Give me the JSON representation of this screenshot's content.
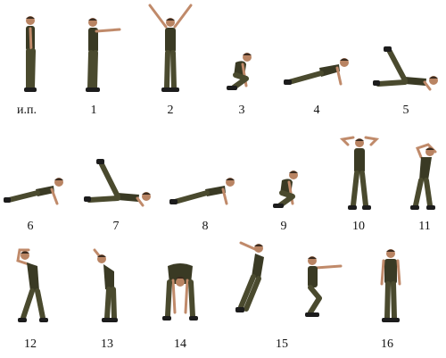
{
  "labels": [
    {
      "id": "start",
      "text": "и.п."
    },
    {
      "id": "s1",
      "text": "1"
    },
    {
      "id": "s2",
      "text": "2"
    },
    {
      "id": "s3",
      "text": "3"
    },
    {
      "id": "s4",
      "text": "4"
    },
    {
      "id": "s5",
      "text": "5"
    },
    {
      "id": "s6",
      "text": "6"
    },
    {
      "id": "s7",
      "text": "7"
    },
    {
      "id": "s8",
      "text": "8"
    },
    {
      "id": "s9",
      "text": "9"
    },
    {
      "id": "s10",
      "text": "10"
    },
    {
      "id": "s11",
      "text": "11"
    },
    {
      "id": "s12",
      "text": "12"
    },
    {
      "id": "s13",
      "text": "13"
    },
    {
      "id": "s14",
      "text": "14"
    },
    {
      "id": "s15",
      "text": "15"
    },
    {
      "id": "s16",
      "text": "16"
    }
  ],
  "colors": {
    "uniform": "#4a4a2e",
    "shirt": "#3a3a24",
    "skin": "#c08a6a",
    "background": "#ffffff"
  }
}
